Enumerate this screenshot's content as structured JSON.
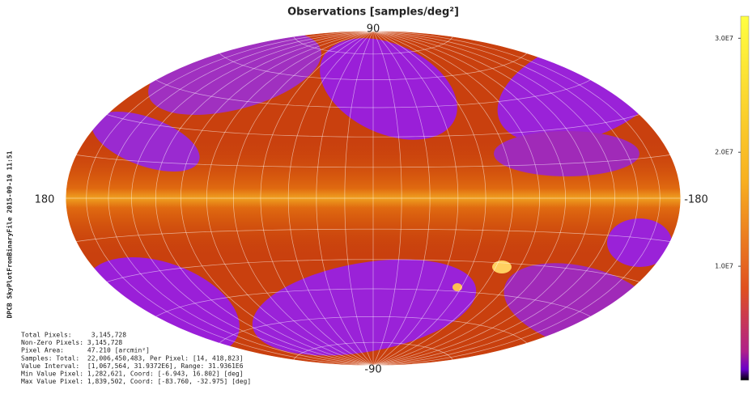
{
  "chart_data": {
    "type": "skymap",
    "title": "Observations [samples/deg²]",
    "top_label": "90",
    "bottom_label": "-90",
    "left_label": "180",
    "right_label": "-180",
    "colorbar": {
      "zlim": [
        0,
        31937200
      ],
      "ticks": [
        {
          "value": 10000000,
          "label": "1.0E7"
        },
        {
          "value": 20000000,
          "label": "2.0E7"
        },
        {
          "value": 30000000,
          "label": "3.0E7"
        }
      ]
    },
    "info": [
      "Total Pixels:     3,145,728",
      "Non-Zero Pixels: 3,145,728",
      "Pixel Area:      47.210 [arcmin²]",
      "Samples: Total:  22,006,450,483, Per Pixel: [14, 418,823]",
      "Value Interval:  [1,067,564, 31.9372E6], Range: 31.9361E6",
      "Min Value Pixel: 1,282,621, Coord: [-6.943, 16.802] [deg]",
      "Max Value Pixel: 1,839,502, Coord: [-83.760, -32.975] [deg]"
    ],
    "side_note": "DPCB SkyPlotFromBinaryFile  2015-09-19  11:51"
  }
}
